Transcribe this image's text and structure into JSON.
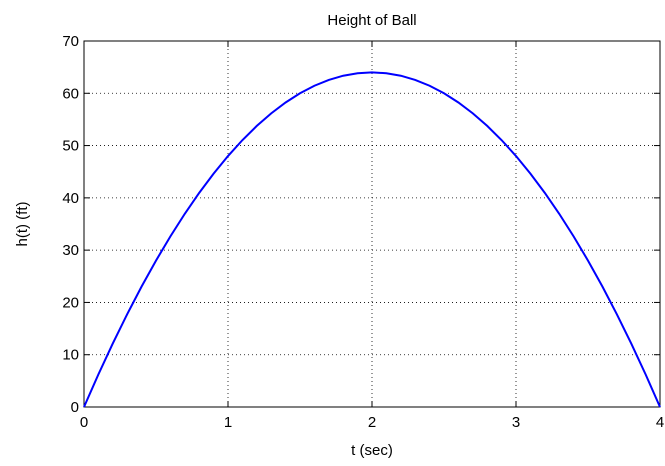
{
  "chart_data": {
    "type": "line",
    "title": "Height of Ball",
    "xlabel": "t (sec)",
    "ylabel": "h(t) (ft)",
    "xlim": [
      0,
      4
    ],
    "ylim": [
      0,
      70
    ],
    "xticks": [
      0,
      1,
      2,
      3,
      4
    ],
    "yticks": [
      0,
      10,
      20,
      30,
      40,
      50,
      60,
      70
    ],
    "grid": true,
    "legend": "none",
    "series": [
      {
        "color": "#0000ff",
        "x": [
          0,
          0.1,
          0.2,
          0.3,
          0.4,
          0.5,
          0.6,
          0.7,
          0.8,
          0.9,
          1.0,
          1.1,
          1.2,
          1.3,
          1.4,
          1.5,
          1.6,
          1.7,
          1.8,
          1.9,
          2.0,
          2.1,
          2.2,
          2.3,
          2.4,
          2.5,
          2.6,
          2.7,
          2.8,
          2.9,
          3.0,
          3.1,
          3.2,
          3.3,
          3.4,
          3.5,
          3.6,
          3.7,
          3.8,
          3.9,
          4.0
        ],
        "y": [
          0,
          6.24,
          12.16,
          17.76,
          23.04,
          28.0,
          32.64,
          36.96,
          40.96,
          44.64,
          48.0,
          51.04,
          53.76,
          56.16,
          58.24,
          60.0,
          61.44,
          62.56,
          63.36,
          63.84,
          64.0,
          63.84,
          63.36,
          62.56,
          61.44,
          60.0,
          58.24,
          56.16,
          53.76,
          51.04,
          48.0,
          44.64,
          40.96,
          36.96,
          32.64,
          28.0,
          23.04,
          17.76,
          12.16,
          6.24,
          0
        ]
      }
    ]
  }
}
